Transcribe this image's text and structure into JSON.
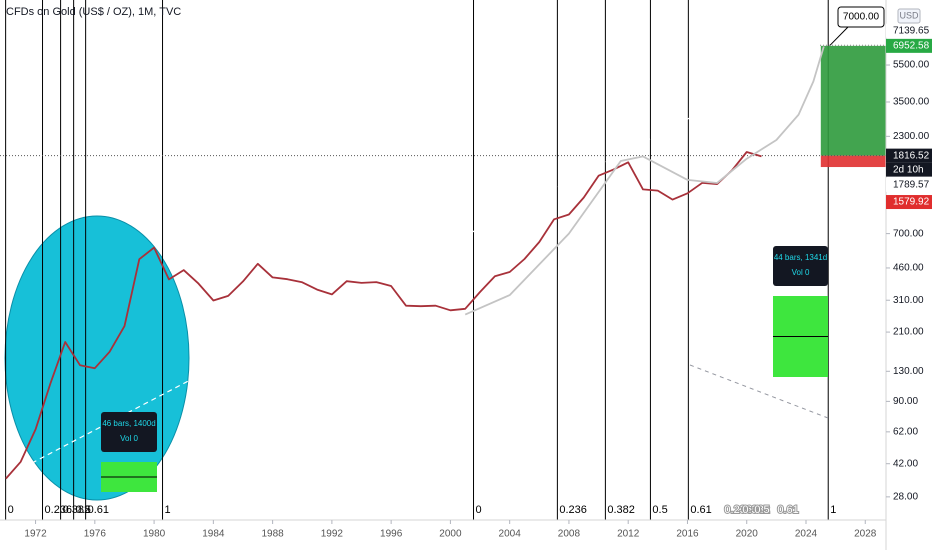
{
  "chart_data": {
    "type": "line",
    "title": "CFDs on Gold (US$ / OZ), 1M, TVC",
    "currency": "USD",
    "log_scale": true,
    "xlim": [
      1969.6,
      2029.4
    ],
    "ylim": [
      21.1,
      12180
    ],
    "xticks": [
      1972,
      1976,
      1980,
      1984,
      1988,
      1992,
      1996,
      2000,
      2004,
      2008,
      2012,
      2016,
      2020,
      2024,
      2028
    ],
    "yticks": [
      {
        "value": 5500,
        "label": "5500.00"
      },
      {
        "value": 3500,
        "label": "3500.00"
      },
      {
        "value": 2300,
        "label": "2300.00"
      },
      {
        "value": 700,
        "label": "700.00"
      },
      {
        "value": 460,
        "label": "460.00"
      },
      {
        "value": 310,
        "label": "310.00"
      },
      {
        "value": 210,
        "label": "210.00"
      },
      {
        "value": 130,
        "label": "130.00"
      },
      {
        "value": 90,
        "label": "90.00"
      },
      {
        "value": 62,
        "label": "62.00"
      },
      {
        "value": 42,
        "label": "42.00"
      },
      {
        "value": 28,
        "label": "28.00"
      }
    ],
    "series": [
      {
        "color": "#a8313a",
        "x": [
          1970,
          1971,
          1972,
          1973,
          1974,
          1975,
          1976,
          1977,
          1978,
          1979,
          1980,
          1981,
          1982,
          1983,
          1984,
          1985,
          1986,
          1987,
          1988,
          1989,
          1990,
          1991,
          1992,
          1993,
          1994,
          1995,
          1996,
          1997,
          1998,
          1999,
          2000,
          2001,
          2002,
          2003,
          2004,
          2005,
          2006,
          2007,
          2008,
          2009,
          2010,
          2011,
          2012,
          2013,
          2014,
          2015,
          2016,
          2017,
          2018,
          2019,
          2020,
          2021
        ],
        "values": [
          35,
          43,
          64,
          112,
          186,
          140,
          135,
          165,
          226,
          512,
          590,
          400,
          448,
          380,
          309,
          327,
          390,
          484,
          410,
          401,
          386,
          353,
          333,
          391,
          383,
          387,
          369,
          290,
          288,
          290,
          274,
          279,
          343,
          416,
          438,
          513,
          632,
          834,
          884,
          1088,
          1421,
          1531,
          1675,
          1202,
          1184,
          1061,
          1146,
          1303,
          1282,
          1517,
          1898,
          1800
        ]
      },
      {
        "color": "#c4c4c4",
        "x": [
          2001,
          2004,
          2008,
          2011.5,
          2013,
          2016,
          2018,
          2020,
          2022,
          2023.5,
          2024.5,
          2025.2
        ],
        "values": [
          260,
          330,
          700,
          1700,
          1800,
          1350,
          1300,
          1750,
          2200,
          3000,
          4500,
          6900
        ]
      }
    ],
    "trendline": {
      "color": "#ffffff",
      "x": [
        1969.6,
        2025.5
      ],
      "values": [
        34.5,
        7000
      ]
    },
    "fib_zones": [
      {
        "color": "#000000",
        "x": [
          1969.98,
          1972.47,
          1973.69,
          1974.57,
          1975.38,
          1980.57
        ],
        "labels": [
          "0",
          "0.236",
          "0.382",
          "0.5",
          "0.61",
          "1"
        ]
      },
      {
        "color": "#000000",
        "x": [
          2001.56,
          2007.22,
          2010.46,
          2013.5,
          2016.06,
          2025.5
        ],
        "labels": [
          "0",
          "0.236",
          "0.382",
          "0.5",
          "0.61",
          "1"
        ]
      },
      {
        "color": "#ffffff",
        "x": [
          2018.36,
          2019.57,
          2020.38,
          2021.93
        ],
        "labels": [
          "0.236",
          "0.382",
          "0.5",
          "0.61"
        ]
      }
    ],
    "position": {
      "target": 6952.58,
      "entry": 1816.52,
      "stop": 1579.92,
      "x": [
        2025.0,
        2029.4
      ]
    },
    "last_high": 7139.65,
    "close_label": 1789.57,
    "countdown": "2d 10h",
    "callout": {
      "value": 7000,
      "label": "7000.00"
    },
    "bars_patterns": [
      {
        "text": "46 bars, 1400d",
        "vol": "Vol 0"
      },
      {
        "text": "44 bars, 1341d",
        "vol": "Vol 0"
      }
    ]
  }
}
